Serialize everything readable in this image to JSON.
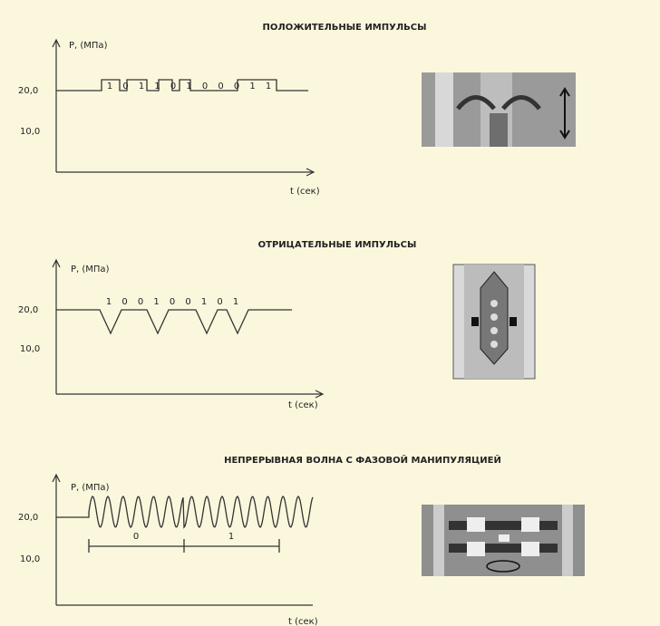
{
  "panels": [
    {
      "title": "ПОЛОЖИТЕЛЬНЫЕ ИМПУЛЬСЫ",
      "y_label": "P, (МПа)",
      "x_label": "t (сек)",
      "y_ticks": [
        "20,0",
        "10,0"
      ],
      "bits": [
        "1",
        "0",
        "1",
        "1",
        "0",
        "1",
        "0",
        "0",
        "0",
        "1",
        "1"
      ]
    },
    {
      "title": "ОТРИЦАТЕЛЬНЫЕ ИМПУЛЬСЫ",
      "y_label": "P, (МПа)",
      "x_label": "t (сек)",
      "y_ticks": [
        "20,0",
        "10,0"
      ],
      "bits": [
        "1",
        "0",
        "0",
        "1",
        "0",
        "0",
        "1",
        "0",
        "1"
      ]
    },
    {
      "title": "НЕПРЕРЫВНАЯ ВОЛНА С ФАЗОВОЙ МАНИПУЛЯЦИЕЙ",
      "y_label": "P, (МПа)",
      "x_label": "t (сек)",
      "y_ticks": [
        "20,0",
        "10,0"
      ],
      "bits": [
        "0",
        "1"
      ]
    }
  ]
}
